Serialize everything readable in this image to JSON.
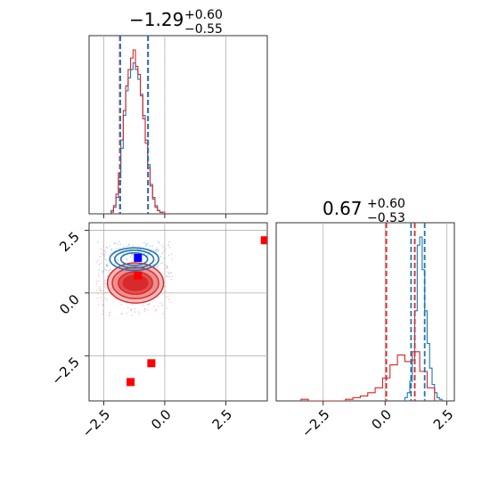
{
  "chart_data": [
    {
      "type": "histogram",
      "panel": "top-left",
      "title": "−1.29",
      "title_plus": "+0.60",
      "title_minus": "−0.55",
      "xlim": [
        -3.1,
        4.2
      ],
      "grid": true,
      "series": [
        {
          "color": "#1f77b4",
          "bins": [
            -2.2,
            -2.1,
            -2.0,
            -1.9,
            -1.8,
            -1.7,
            -1.6,
            -1.5,
            -1.4,
            -1.3,
            -1.2,
            -1.1,
            -1.0,
            -0.9,
            -0.8,
            -0.7,
            -0.6,
            -0.5,
            -0.4,
            -0.3,
            -0.2,
            -0.1,
            0.0
          ],
          "counts": [
            2,
            4,
            10,
            22,
            40,
            60,
            75,
            83,
            88,
            92,
            88,
            82,
            73,
            60,
            45,
            30,
            18,
            10,
            5,
            2,
            1,
            0
          ]
        },
        {
          "color": "#d62728",
          "bins": [
            -2.2,
            -2.1,
            -2.0,
            -1.9,
            -1.8,
            -1.7,
            -1.6,
            -1.5,
            -1.4,
            -1.3,
            -1.2,
            -1.1,
            -1.0,
            -0.9,
            -0.8,
            -0.7,
            -0.6,
            -0.5,
            -0.4,
            -0.3,
            -0.2,
            -0.1,
            0.0
          ],
          "counts": [
            1,
            5,
            12,
            25,
            45,
            63,
            78,
            88,
            95,
            100,
            90,
            85,
            72,
            58,
            43,
            28,
            17,
            9,
            4,
            2,
            1,
            1
          ]
        }
      ],
      "quantile_lines": [
        {
          "x": -1.84,
          "color": "#d62728"
        },
        {
          "x": -1.82,
          "color": "#1f77b4"
        },
        {
          "x": -0.69,
          "color": "#d62728"
        },
        {
          "x": -0.68,
          "color": "#1f77b4"
        }
      ]
    },
    {
      "type": "scatter-contour",
      "panel": "bottom-left",
      "xlim": [
        -3.1,
        4.2
      ],
      "ylim": [
        -4.3,
        2.8
      ],
      "xticks": [
        "−2.5",
        "0.0",
        "2.5"
      ],
      "yticks": [
        "2.5",
        "0.0",
        "−2.5"
      ],
      "xtick_values": [
        -2.5,
        0.0,
        2.5
      ],
      "ytick_values": [
        2.5,
        0.0,
        -2.5
      ],
      "blue_contours": [
        {
          "cx": -1.25,
          "cy": 1.35,
          "rx": 2.0,
          "ry": 0.9
        },
        {
          "cx": -1.25,
          "cy": 1.35,
          "rx": 1.6,
          "ry": 0.7
        },
        {
          "cx": -1.25,
          "cy": 1.35,
          "rx": 1.1,
          "ry": 0.5
        }
      ],
      "red_contours": [
        {
          "cx": -1.2,
          "cy": 0.4,
          "rx": 2.3,
          "ry": 1.6,
          "fill": "#f4b5b4"
        },
        {
          "cx": -1.2,
          "cy": 0.4,
          "rx": 1.9,
          "ry": 1.25,
          "fill": "#ec8a89"
        },
        {
          "cx": -1.2,
          "cy": 0.4,
          "rx": 1.4,
          "ry": 0.9,
          "fill": "#e04746"
        },
        {
          "cx": -1.2,
          "cy": 0.4,
          "rx": 1.0,
          "ry": 0.6,
          "fill": "#d62728"
        }
      ],
      "markers": [
        {
          "x": -1.1,
          "y": 1.4,
          "color": "#0000ff"
        },
        {
          "x": -1.1,
          "y": 0.7,
          "color": "#ff0000"
        },
        {
          "x": 4.1,
          "y": 2.1,
          "color": "#ff0000"
        },
        {
          "x": -0.55,
          "y": -2.8,
          "color": "#ff0000"
        },
        {
          "x": -1.4,
          "y": -3.55,
          "color": "#ff0000"
        }
      ]
    },
    {
      "type": "histogram",
      "panel": "bottom-right",
      "title": "0.67",
      "title_plus": "+0.60",
      "title_minus": "−0.53",
      "xlim": [
        -4.4,
        2.8
      ],
      "xticks": [
        "−2.5",
        "0.0",
        "2.5"
      ],
      "xtick_values": [
        -2.5,
        0.0,
        2.5
      ],
      "grid": true,
      "series": [
        {
          "color": "#1f77b4",
          "bins": [
            0.8,
            0.9,
            1.0,
            1.1,
            1.2,
            1.3,
            1.4,
            1.5,
            1.6,
            1.7,
            1.8,
            1.9,
            2.0,
            2.1,
            2.2,
            2.3
          ],
          "counts": [
            2,
            5,
            12,
            25,
            55,
            95,
            100,
            80,
            55,
            35,
            20,
            10,
            5,
            2,
            1
          ]
        },
        {
          "color": "#d62728",
          "bins": [
            -3.4,
            -3.1,
            -2.8,
            -2.5,
            -2.2,
            -1.9,
            -1.6,
            -1.3,
            -1.0,
            -0.7,
            -0.4,
            -0.1,
            0.2,
            0.5,
            0.8,
            1.1,
            1.4,
            1.7,
            2.0
          ],
          "counts": [
            1,
            0,
            0,
            0,
            0,
            0,
            1,
            2,
            3,
            5,
            8,
            14,
            22,
            28,
            24,
            30,
            18,
            8
          ]
        }
      ],
      "quantile_lines": [
        {
          "x": 0.05,
          "color": "#d62728"
        },
        {
          "x": 1.05,
          "color": "#1f77b4"
        },
        {
          "x": 1.2,
          "color": "#d62728"
        },
        {
          "x": 1.6,
          "color": "#1f77b4"
        }
      ]
    }
  ]
}
